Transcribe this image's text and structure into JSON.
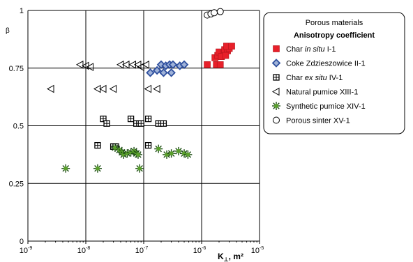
{
  "chart_data": {
    "type": "scatter",
    "ylabel": "β",
    "xlabel": "K",
    "xlabel_sub": "⊥",
    "xlabel_unit": "m²",
    "xscale": "log",
    "xlim": [
      1e-09,
      1e-06
    ],
    "ylim": [
      0,
      1
    ],
    "grid": true,
    "y_ticks": [
      "0",
      "0.25",
      "0.5",
      "0.75",
      "1"
    ],
    "x_ticks": [
      {
        "base": "10",
        "exp": "-9",
        "value": 1e-09
      },
      {
        "base": "10",
        "exp": "-8",
        "value": 1e-08
      },
      {
        "base": "10",
        "exp": "-7",
        "value": 1e-07
      },
      {
        "base": "10",
        "exp": "-6",
        "value": 1e-06
      },
      {
        "base": "10",
        "exp": "-5",
        "value": 1e-05
      }
    ],
    "legend": {
      "position": "right",
      "title": "Porous materials",
      "subtitle": "Anisotropy coefficient",
      "entries": [
        {
          "parts": [
            {
              "t": "Char "
            },
            {
              "t": "in situ",
              "i": true
            },
            {
              "t": " I-1"
            }
          ]
        },
        {
          "parts": [
            {
              "t": "Coke Zdzieszowice II-1"
            }
          ]
        },
        {
          "parts": [
            {
              "t": "Char "
            },
            {
              "t": "ex situ",
              "i": true
            },
            {
              "t": " IV-1"
            }
          ]
        },
        {
          "parts": [
            {
              "t": "Natural pumice XIII-1"
            }
          ]
        },
        {
          "parts": [
            {
              "t": "Synthetic pumice XIV-1"
            }
          ]
        },
        {
          "parts": [
            {
              "t": "Porous sinter XV-1"
            }
          ]
        }
      ]
    },
    "series": [
      {
        "marker": "square-filled",
        "color": "#e8202a",
        "points": [
          [
            1.25e-06,
            0.765
          ],
          [
            1.8e-06,
            0.765
          ],
          [
            2.1e-06,
            0.765
          ],
          [
            1.7e-06,
            0.795
          ],
          [
            1.9e-06,
            0.805
          ],
          [
            2.2e-06,
            0.81
          ],
          [
            2e-06,
            0.82
          ],
          [
            2.4e-06,
            0.815
          ],
          [
            2.5e-06,
            0.83
          ],
          [
            2.8e-06,
            0.825
          ],
          [
            3e-06,
            0.835
          ],
          [
            2.7e-06,
            0.845
          ],
          [
            3.3e-06,
            0.845
          ],
          [
            2.2e-06,
            0.8
          ],
          [
            2.6e-06,
            0.805
          ]
        ]
      },
      {
        "marker": "diamond",
        "color": "#2e4f9e",
        "points": [
          [
            1.3e-07,
            0.73
          ],
          [
            1.7e-07,
            0.74
          ],
          [
            2e-07,
            0.765
          ],
          [
            2.4e-07,
            0.76
          ],
          [
            2.8e-07,
            0.765
          ],
          [
            3.2e-07,
            0.765
          ],
          [
            4.2e-07,
            0.76
          ],
          [
            5e-07,
            0.765
          ],
          [
            2.2e-07,
            0.73
          ],
          [
            3e-07,
            0.73
          ]
        ]
      },
      {
        "marker": "square-grid",
        "color": "#000000",
        "points": [
          [
            1.6e-08,
            0.415
          ],
          [
            3e-08,
            0.41
          ],
          [
            3.3e-08,
            0.41
          ],
          [
            1.2e-07,
            0.415
          ],
          [
            2e-08,
            0.53
          ],
          [
            2.3e-08,
            0.51
          ],
          [
            6e-08,
            0.53
          ],
          [
            7.5e-08,
            0.51
          ],
          [
            9e-08,
            0.51
          ],
          [
            1.2e-07,
            0.53
          ],
          [
            1.8e-07,
            0.51
          ],
          [
            2.2e-07,
            0.51
          ]
        ]
      },
      {
        "marker": "triangle-left",
        "color": "#000000",
        "points": [
          [
            2.5e-09,
            0.66
          ],
          [
            8e-09,
            0.765
          ],
          [
            1e-08,
            0.76
          ],
          [
            1.2e-08,
            0.755
          ],
          [
            1.6e-08,
            0.66
          ],
          [
            2e-08,
            0.66
          ],
          [
            3e-08,
            0.66
          ],
          [
            4e-08,
            0.765
          ],
          [
            5e-08,
            0.765
          ],
          [
            6.5e-08,
            0.765
          ],
          [
            8e-08,
            0.765
          ],
          [
            9e-08,
            0.755
          ],
          [
            1.1e-07,
            0.765
          ],
          [
            1.2e-07,
            0.66
          ],
          [
            1.7e-07,
            0.66
          ]
        ]
      },
      {
        "marker": "star",
        "color": "#5aa02c",
        "points": [
          [
            4.5e-09,
            0.315
          ],
          [
            1.6e-08,
            0.315
          ],
          [
            8.5e-08,
            0.315
          ],
          [
            3.2e-08,
            0.405
          ],
          [
            3.8e-08,
            0.395
          ],
          [
            4.2e-08,
            0.385
          ],
          [
            4.5e-08,
            0.375
          ],
          [
            5.2e-08,
            0.38
          ],
          [
            6e-08,
            0.385
          ],
          [
            6.8e-08,
            0.39
          ],
          [
            7.5e-08,
            0.38
          ],
          [
            8e-08,
            0.375
          ],
          [
            1.8e-07,
            0.4
          ],
          [
            2.5e-07,
            0.375
          ],
          [
            3e-07,
            0.38
          ],
          [
            4e-07,
            0.39
          ],
          [
            5e-07,
            0.38
          ],
          [
            5.8e-07,
            0.375
          ]
        ]
      },
      {
        "marker": "circle-open",
        "color": "#000000",
        "points": [
          [
            1.25e-06,
            0.98
          ],
          [
            1.45e-06,
            0.985
          ],
          [
            1.65e-06,
            0.99
          ],
          [
            2.1e-06,
            0.995
          ]
        ]
      }
    ]
  }
}
